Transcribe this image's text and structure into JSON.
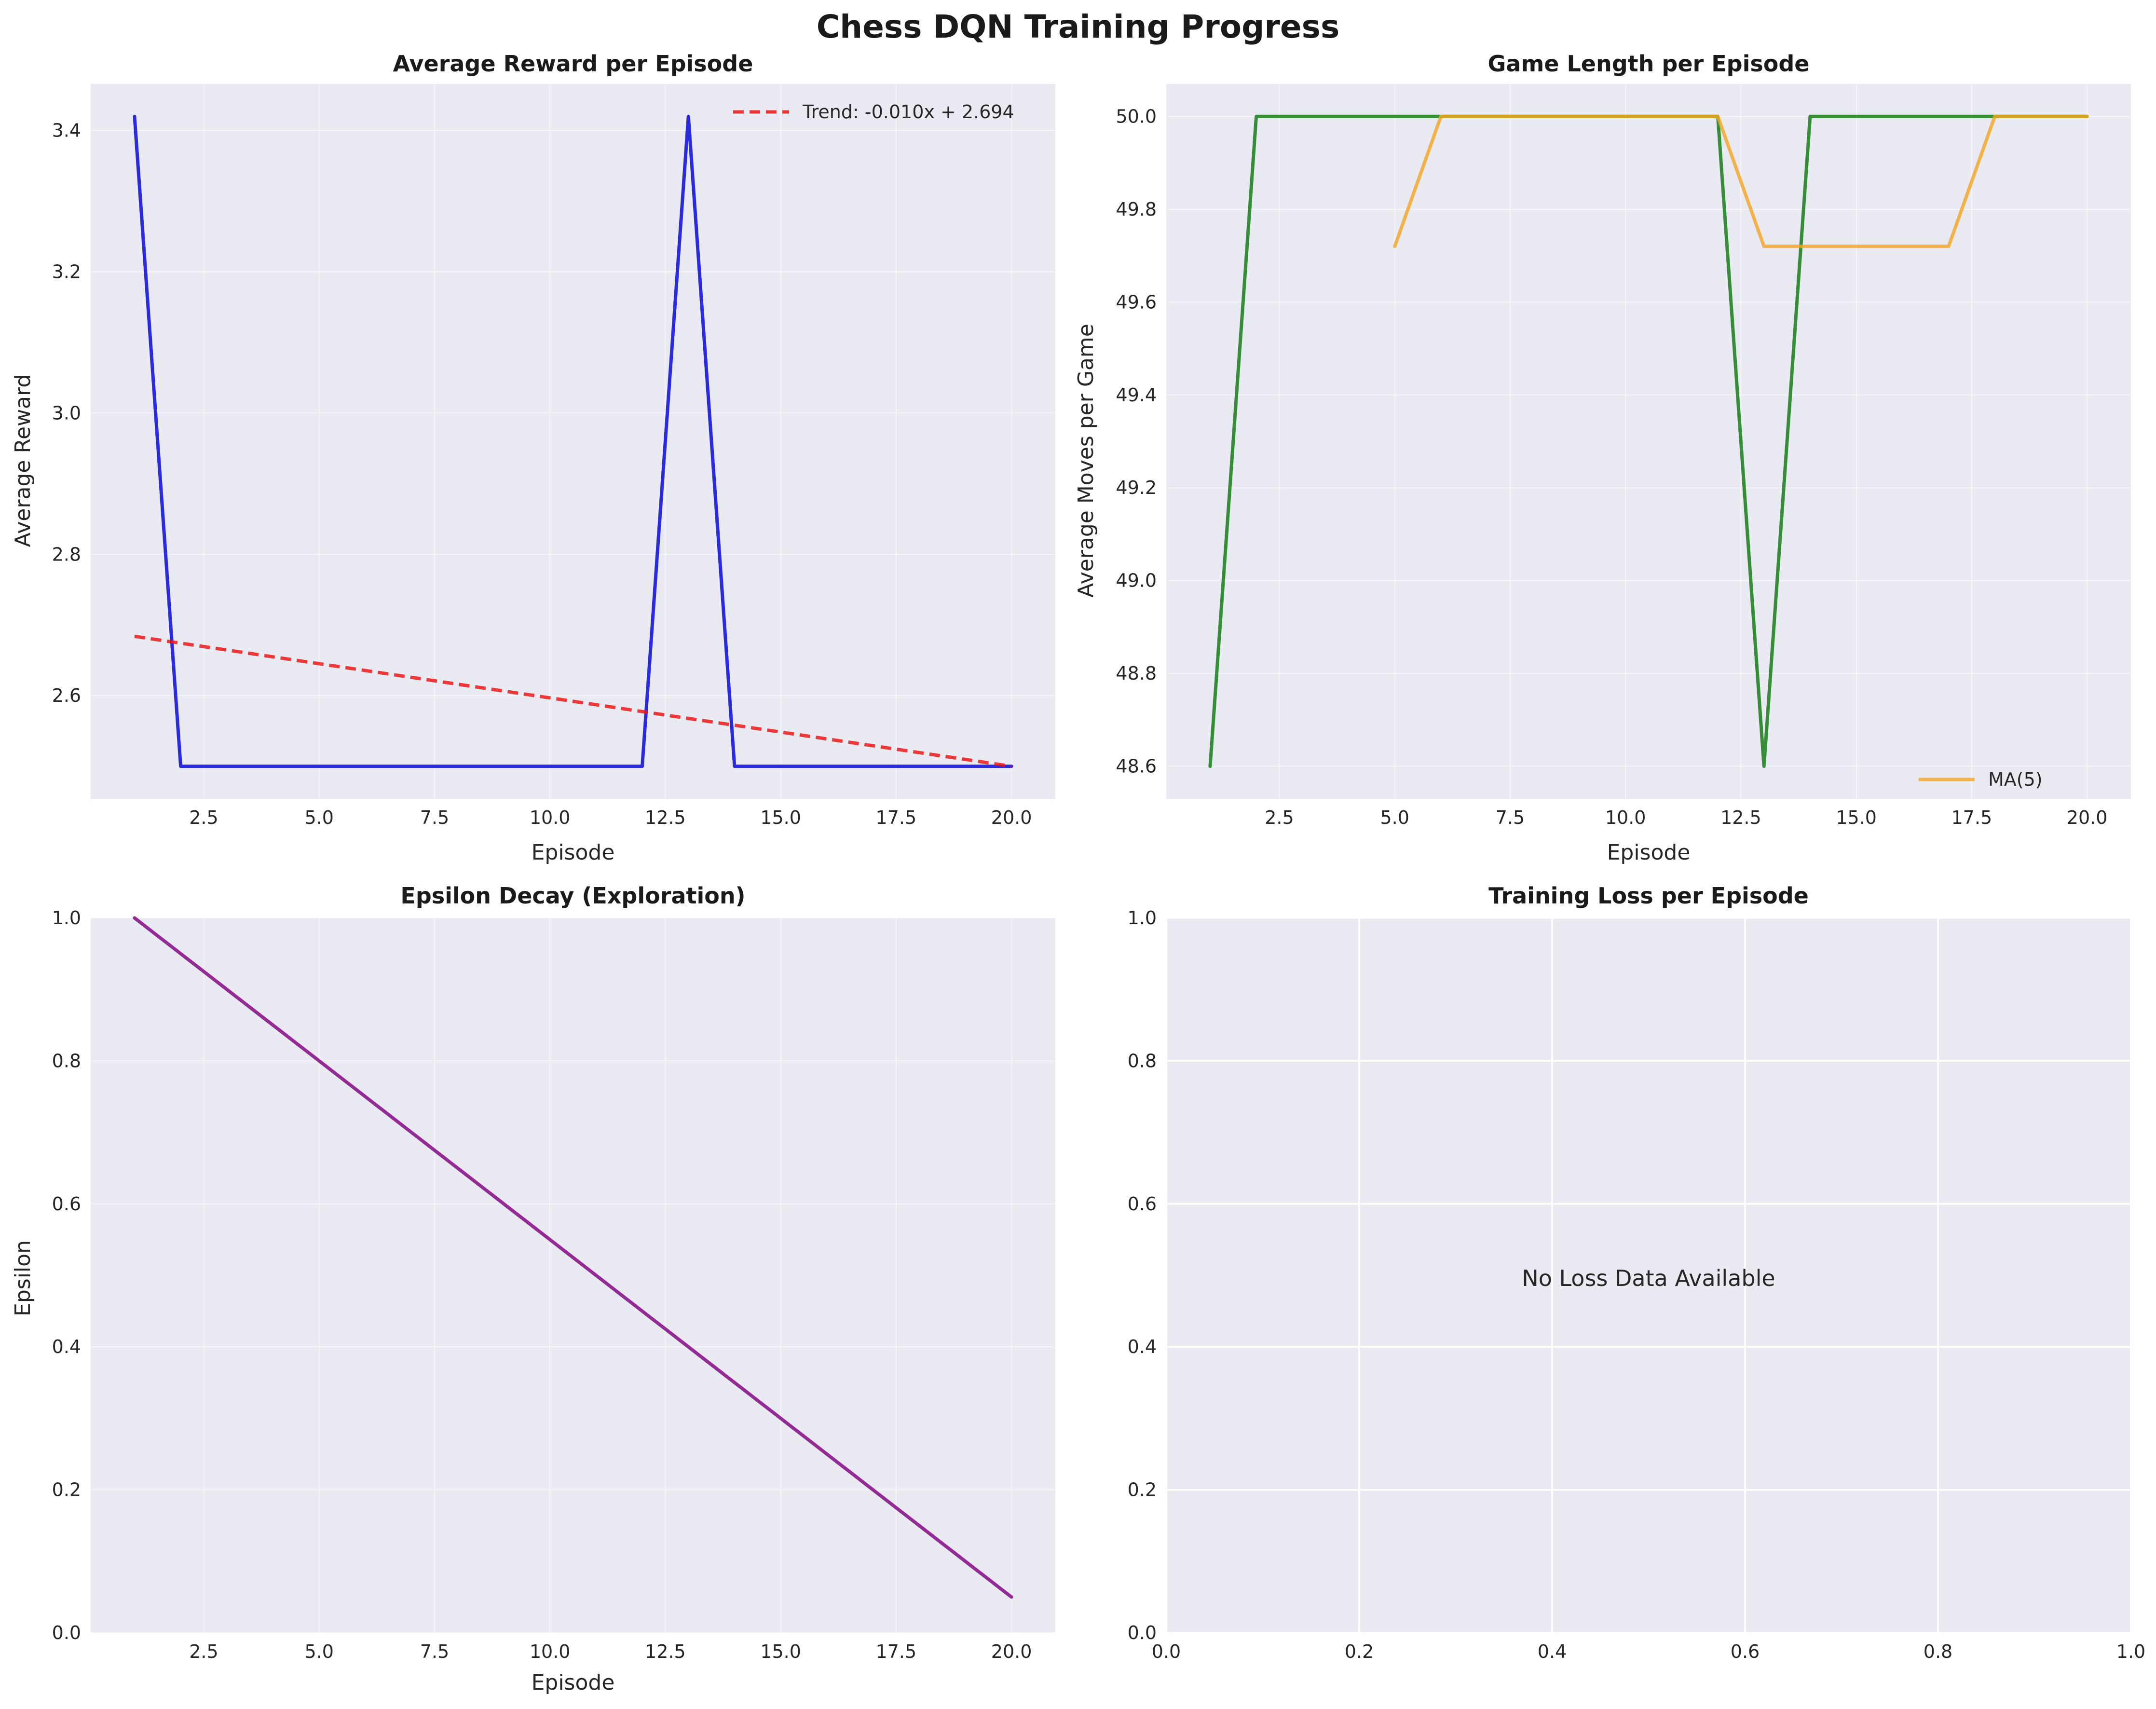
{
  "figure": {
    "title": "Chess DQN Training Progress",
    "background": "#ffffff",
    "axes_background": "#eaeaf2",
    "grid_color": "#ffffff"
  },
  "chart_data": [
    {
      "type": "line",
      "title": "Average Reward per Episode",
      "xlabel": "Episode",
      "ylabel": "Average Reward",
      "xlim": [
        0.05,
        20.95
      ],
      "ylim": [
        2.454,
        3.466
      ],
      "xticks": [
        2.5,
        5.0,
        7.5,
        10.0,
        12.5,
        15.0,
        17.5,
        20.0
      ],
      "xtick_labels": [
        "2.5",
        "5.0",
        "7.5",
        "10.0",
        "12.5",
        "15.0",
        "17.5",
        "20.0"
      ],
      "yticks": [
        2.6,
        2.8,
        3.0,
        3.2,
        3.4
      ],
      "ytick_labels": [
        "2.6",
        "2.8",
        "3.0",
        "3.2",
        "3.4"
      ],
      "grid": true,
      "grid_style": "faint",
      "legend": "top-right",
      "series": [
        {
          "color": "#0000dd",
          "style": "solid",
          "x": [
            1,
            2,
            3,
            4,
            5,
            6,
            7,
            8,
            9,
            10,
            11,
            12,
            13,
            14,
            15,
            16,
            17,
            18,
            19,
            20
          ],
          "values": [
            3.42,
            2.5,
            2.5,
            2.5,
            2.5,
            2.5,
            2.5,
            2.5,
            2.5,
            2.5,
            2.5,
            2.5,
            3.42,
            2.5,
            2.5,
            2.5,
            2.5,
            2.5,
            2.5,
            2.5
          ]
        },
        {
          "name": "Trend: -0.010x + 2.694",
          "color": "#ee1111",
          "style": "dashed",
          "x": [
            1,
            20
          ],
          "values": [
            2.684,
            2.5
          ]
        }
      ]
    },
    {
      "type": "line",
      "title": "Game Length per Episode",
      "xlabel": "Episode",
      "ylabel": "Average Moves per Game",
      "xlim": [
        0.05,
        20.95
      ],
      "ylim": [
        48.53,
        50.07
      ],
      "xticks": [
        2.5,
        5.0,
        7.5,
        10.0,
        12.5,
        15.0,
        17.5,
        20.0
      ],
      "xtick_labels": [
        "2.5",
        "5.0",
        "7.5",
        "10.0",
        "12.5",
        "15.0",
        "17.5",
        "20.0"
      ],
      "yticks": [
        48.6,
        48.8,
        49.0,
        49.2,
        49.4,
        49.6,
        49.8,
        50.0
      ],
      "ytick_labels": [
        "48.6",
        "48.8",
        "49.0",
        "49.2",
        "49.4",
        "49.6",
        "49.8",
        "50.0"
      ],
      "grid": true,
      "grid_style": "faint",
      "legend": "bottom-right",
      "series": [
        {
          "color": "#0e7a0e",
          "style": "solid",
          "x": [
            1,
            2,
            3,
            4,
            5,
            6,
            7,
            8,
            9,
            10,
            11,
            12,
            13,
            14,
            15,
            16,
            17,
            18,
            19,
            20
          ],
          "values": [
            48.6,
            50,
            50,
            50,
            50,
            50,
            50,
            50,
            50,
            50,
            50,
            50,
            48.6,
            50,
            50,
            50,
            50,
            50,
            50,
            50
          ]
        },
        {
          "name": "MA(5)",
          "color": "#f5a623",
          "style": "solid",
          "x": [
            5,
            6,
            7,
            8,
            9,
            10,
            11,
            12,
            13,
            14,
            15,
            16,
            17,
            18,
            19,
            20
          ],
          "values": [
            49.72,
            50,
            50,
            50,
            50,
            50,
            50,
            50,
            49.72,
            49.72,
            49.72,
            49.72,
            49.72,
            50,
            50,
            50
          ]
        }
      ]
    },
    {
      "type": "line",
      "title": "Epsilon Decay (Exploration)",
      "xlabel": "Episode",
      "ylabel": "Epsilon",
      "xlim": [
        0.05,
        20.95
      ],
      "ylim": [
        0.0,
        1.0
      ],
      "xticks": [
        2.5,
        5.0,
        7.5,
        10.0,
        12.5,
        15.0,
        17.5,
        20.0
      ],
      "xtick_labels": [
        "2.5",
        "5.0",
        "7.5",
        "10.0",
        "12.5",
        "15.0",
        "17.5",
        "20.0"
      ],
      "yticks": [
        0.0,
        0.2,
        0.4,
        0.6,
        0.8,
        1.0
      ],
      "ytick_labels": [
        "0.0",
        "0.2",
        "0.4",
        "0.6",
        "0.8",
        "1.0"
      ],
      "grid": true,
      "grid_style": "faint",
      "series": [
        {
          "color": "#800080",
          "style": "solid",
          "x": [
            1,
            2,
            3,
            4,
            5,
            6,
            7,
            8,
            9,
            10,
            11,
            12,
            13,
            14,
            15,
            16,
            17,
            18,
            19,
            20
          ],
          "values": [
            1.0,
            0.95,
            0.9,
            0.85,
            0.8,
            0.75,
            0.7,
            0.65,
            0.6,
            0.55,
            0.5,
            0.45,
            0.4,
            0.35,
            0.3,
            0.25,
            0.2,
            0.15,
            0.1,
            0.05
          ]
        }
      ]
    },
    {
      "type": "line",
      "title": "Training Loss per Episode",
      "xlabel": "",
      "ylabel": "",
      "xlim": [
        0.0,
        1.0
      ],
      "ylim": [
        0.0,
        1.0
      ],
      "xticks": [
        0.0,
        0.2,
        0.4,
        0.6,
        0.8,
        1.0
      ],
      "xtick_labels": [
        "0.0",
        "0.2",
        "0.4",
        "0.6",
        "0.8",
        "1.0"
      ],
      "yticks": [
        0.0,
        0.2,
        0.4,
        0.6,
        0.8,
        1.0
      ],
      "ytick_labels": [
        "0.0",
        "0.2",
        "0.4",
        "0.6",
        "0.8",
        "1.0"
      ],
      "grid": true,
      "grid_style": "solid",
      "note": "No Loss Data Available",
      "series": []
    }
  ]
}
